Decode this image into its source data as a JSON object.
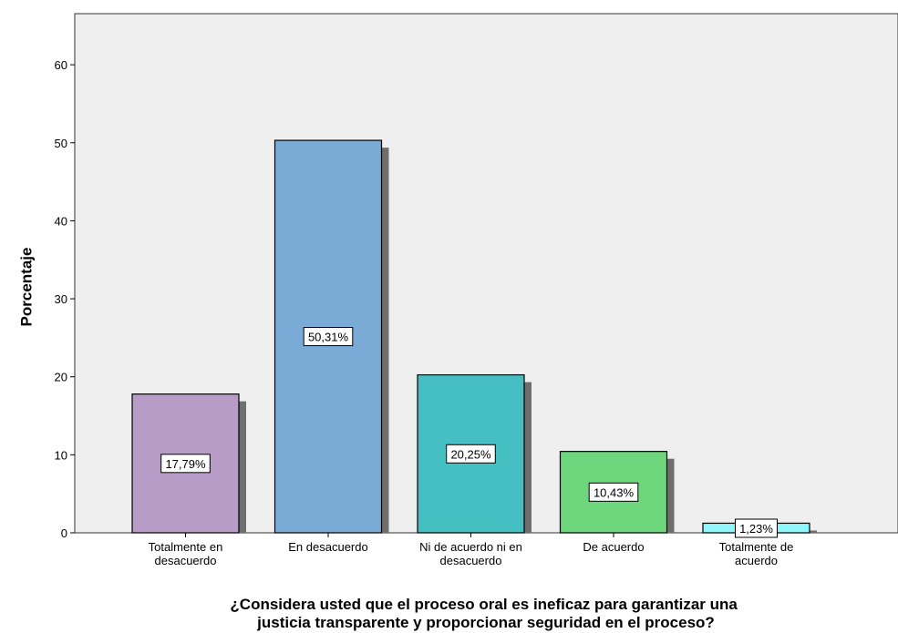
{
  "chart_data": {
    "type": "bar",
    "categories": [
      [
        "Totalmente en",
        "desacuerdo"
      ],
      [
        "En desacuerdo"
      ],
      [
        "Ni de acuerdo ni en",
        "desacuerdo"
      ],
      [
        "De acuerdo"
      ],
      [
        "Totalmente de",
        "acuerdo"
      ]
    ],
    "values": [
      17.79,
      50.31,
      20.25,
      10.43,
      1.23
    ],
    "data_labels": [
      "17,79%",
      "50,31%",
      "20,25%",
      "10,43%",
      "1,23%"
    ],
    "colors": [
      "#b89cc8",
      "#7aaad6",
      "#45bfc2",
      "#6ed67c",
      "#8ff6fa"
    ],
    "ylabel": "Porcentaje",
    "xlabel": [
      "¿Considera usted que el proceso oral es ineficaz para garantizar una",
      "justicia transparente y proporcionar seguridad en el proceso?"
    ],
    "yticks": [
      0,
      10,
      20,
      30,
      40,
      50,
      60
    ],
    "ylim": [
      0,
      66
    ],
    "grid": false,
    "plot_background": "#efefef"
  }
}
